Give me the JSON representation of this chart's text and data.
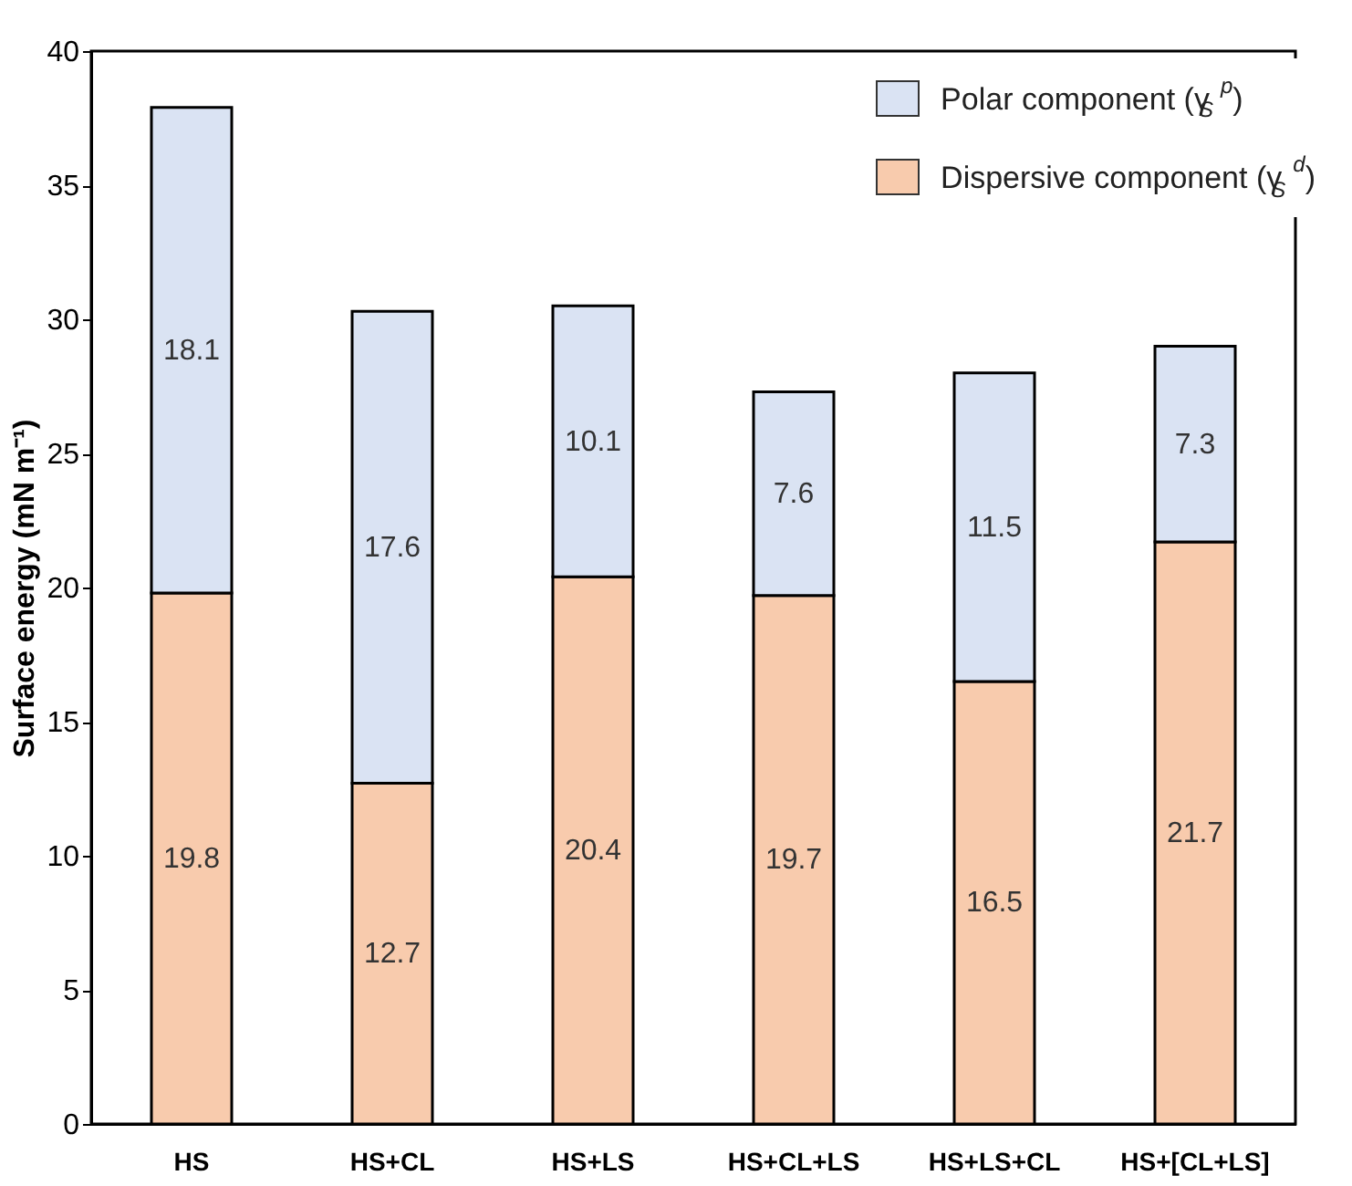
{
  "chart_data": {
    "type": "bar",
    "stacked": true,
    "ylabel": "Surface energy (mN m⁻¹)",
    "categories": [
      "HS",
      "HS+CL",
      "HS+LS",
      "HS+CL+LS",
      "HS+LS+CL",
      "HS+[CL+LS]"
    ],
    "series": [
      {
        "name": "Dispersive component (γ$_{S}$$^{d}$)",
        "color": "#f8cbad",
        "values": [
          19.8,
          12.7,
          20.4,
          19.7,
          16.5,
          21.7
        ]
      },
      {
        "name": "Polar component (γ$_{S}$$^{p}$)",
        "color": "#dae3f3",
        "values": [
          18.1,
          17.6,
          10.1,
          7.6,
          11.5,
          7.3
        ]
      }
    ],
    "ylim": [
      0,
      40
    ],
    "yticks": [
      0,
      5,
      10,
      15,
      20,
      25,
      30,
      35,
      40
    ],
    "data_labels": true,
    "legend": "top right",
    "grid": false
  }
}
